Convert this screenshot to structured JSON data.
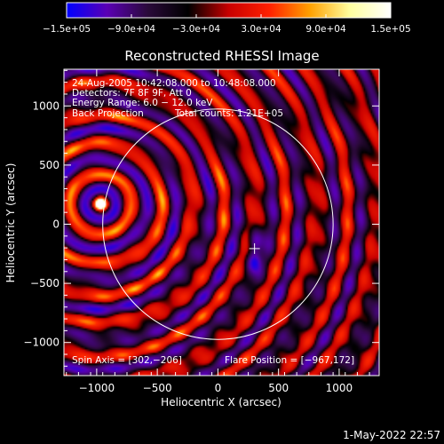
{
  "chart_data": {
    "type": "heatmap",
    "title": "Reconstructed RHESSI Image",
    "xlabel": "Heliocentric X (arcsec)",
    "ylabel": "Heliocentric Y (arcsec)",
    "xlim": [
      -1270,
      1330
    ],
    "ylim": [
      -1280,
      1310
    ],
    "x_ticks": [
      {
        "value": -1000,
        "label": "−1000"
      },
      {
        "value": -500,
        "label": "−500"
      },
      {
        "value": 0,
        "label": "0"
      },
      {
        "value": 500,
        "label": "500"
      },
      {
        "value": 1000,
        "label": "1000"
      }
    ],
    "y_ticks": [
      {
        "value": 1000,
        "label": "1000"
      },
      {
        "value": 500,
        "label": "500"
      },
      {
        "value": 0,
        "label": "0"
      },
      {
        "value": -500,
        "label": "−500"
      },
      {
        "value": -1000,
        "label": "−1000"
      }
    ],
    "colorbar": {
      "range": [
        -150000,
        150000
      ],
      "tick_values": [
        -150000,
        -90000,
        -30000,
        30000,
        90000,
        150000
      ],
      "tick_labels": [
        "−1.5e+05",
        "−9.0e+04",
        "−3.0e+04",
        "3.0e+04",
        "9.0e+04",
        "1.5e+05"
      ],
      "colors": [
        "#0000ff",
        "#5a00b4",
        "#2a0a3a",
        "#000000",
        "#c80000",
        "#ff2000",
        "#ffa000",
        "#ffffa0",
        "#ffffff"
      ]
    },
    "annotations": [
      "24-Aug-2005 10:42:08.000 to 10:48:08.000",
      "Detectors: 7F 8F 9F, Att 0",
      "Energy Range: 6.0 − 12.0 keV",
      "Back Projection",
      "Total counts: 1.21E+05"
    ],
    "footer_left": "Spin Axis = [302,−206]",
    "footer_right": "Flare Position = [−967,172]",
    "spin_axis": [
      302,
      -206
    ],
    "flare_position": [
      -967,
      172
    ],
    "solar_limb_radius": 950,
    "timestamp": "1-May-2022 22:57"
  }
}
